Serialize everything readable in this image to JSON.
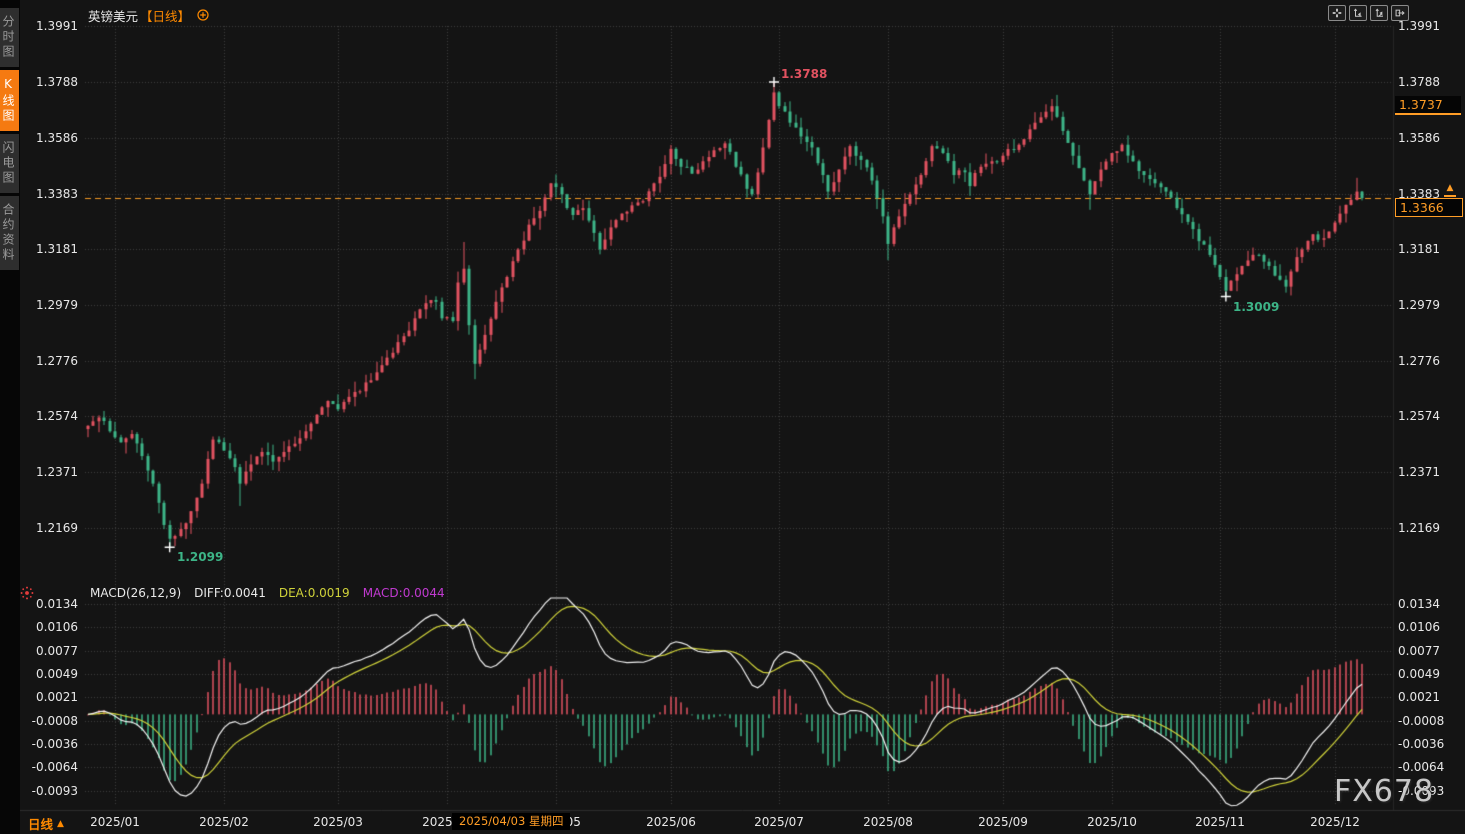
{
  "sidebar": {
    "items": [
      {
        "label": "分时图",
        "active": false
      },
      {
        "label": "K线图",
        "active": true
      },
      {
        "label": "闪电图",
        "active": false
      },
      {
        "label": "合约资料",
        "active": false
      }
    ]
  },
  "header": {
    "symbol": "英镑美元",
    "period_tag": "【日线】"
  },
  "toolbar": {
    "icons": [
      "move-icon",
      "fit-axis-left-icon",
      "fit-axis-right-icon",
      "shift-right-icon"
    ]
  },
  "price_tags": {
    "upper": "1.3737",
    "last": "1.3366"
  },
  "macd_header": {
    "params": "MACD(26,12,9)",
    "diff_label": "DIFF:0.0041",
    "dea_label": "DEA:0.0019",
    "macd_label": "MACD:0.0044"
  },
  "bottom_bar": {
    "period": "日线",
    "arrow": "▲",
    "date_tag": "2025/04/03 星期四",
    "watermark": "FX678"
  },
  "latest_marker_glyph": "▲",
  "chart_data": {
    "type": "candlestick",
    "title": "英镑美元 日线 (GBP/USD daily, year 2025)",
    "price_axis": {
      "ticks": [
        "1.3991",
        "1.3788",
        "1.3586",
        "1.3383",
        "1.3181",
        "1.2979",
        "1.2776",
        "1.2574",
        "1.2371",
        "1.2169"
      ],
      "top_value": 1.3991,
      "bottom_value": 1.2169
    },
    "macd_axis": {
      "ticks": [
        "0.0134",
        "0.0106",
        "0.0077",
        "0.0049",
        "0.0021",
        "-0.0008",
        "-0.0036",
        "-0.0064",
        "-0.0093"
      ],
      "top_value": 0.0134,
      "bottom_value": -0.0093
    },
    "x_axis": {
      "months": [
        "2025/01",
        "2025/02",
        "2025/03",
        "2025/04",
        "2025/05",
        "2025/06",
        "2025/07",
        "2025/08",
        "2025/09",
        "2025/10",
        "2025/11",
        "2025/12"
      ],
      "month_start_indices": [
        5,
        25,
        46,
        66,
        86,
        107,
        127,
        147,
        168,
        188,
        208,
        229
      ]
    },
    "last_price": 1.3366,
    "upper_tag_price": 1.3737,
    "annotations": [
      {
        "index": 126,
        "type": "high",
        "price": 1.3788,
        "label": "1.3788"
      },
      {
        "index": 15,
        "type": "low",
        "price": 1.2099,
        "label": "1.2099"
      },
      {
        "index": 209,
        "type": "low",
        "price": 1.3009,
        "label": "1.3009"
      }
    ],
    "macd": {
      "fast": 26,
      "slow": 12,
      "signal": 9,
      "diff": 0.0041,
      "dea": 0.0019,
      "macd": 0.0044
    },
    "candles": {
      "count": 235,
      "seed": 20251216,
      "anchors": [
        [
          0,
          1.254
        ],
        [
          2,
          1.257
        ],
        [
          4,
          1.252
        ],
        [
          6,
          1.248
        ],
        [
          8,
          1.251
        ],
        [
          10,
          1.243
        ],
        [
          12,
          1.233
        ],
        [
          14,
          1.218
        ],
        [
          15,
          1.213
        ],
        [
          17,
          1.2165
        ],
        [
          19,
          1.223
        ],
        [
          21,
          1.233
        ],
        [
          23,
          1.249
        ],
        [
          25,
          1.245
        ],
        [
          27,
          1.239
        ],
        [
          28,
          1.233
        ],
        [
          30,
          1.24
        ],
        [
          32,
          1.2445
        ],
        [
          34,
          1.241
        ],
        [
          36,
          1.2445
        ],
        [
          38,
          1.2475
        ],
        [
          40,
          1.252
        ],
        [
          42,
          1.258
        ],
        [
          44,
          1.263
        ],
        [
          46,
          1.26
        ],
        [
          48,
          1.2645
        ],
        [
          50,
          1.2665
        ],
        [
          52,
          1.2705
        ],
        [
          54,
          1.276
        ],
        [
          56,
          1.2805
        ],
        [
          58,
          1.2865
        ],
        [
          60,
          1.293
        ],
        [
          62,
          1.2985
        ],
        [
          64,
          1.299
        ],
        [
          65,
          1.293
        ],
        [
          67,
          1.292
        ],
        [
          68,
          1.306
        ],
        [
          69,
          1.311
        ],
        [
          70,
          1.2905
        ],
        [
          71,
          1.2765
        ],
        [
          73,
          1.287
        ],
        [
          75,
          1.299
        ],
        [
          77,
          1.308
        ],
        [
          79,
          1.318
        ],
        [
          81,
          1.327
        ],
        [
          83,
          1.332
        ],
        [
          85,
          1.342
        ],
        [
          87,
          1.338
        ],
        [
          89,
          1.3305
        ],
        [
          91,
          1.333
        ],
        [
          93,
          1.324
        ],
        [
          94,
          1.318
        ],
        [
          96,
          1.326
        ],
        [
          98,
          1.331
        ],
        [
          100,
          1.334
        ],
        [
          102,
          1.3355
        ],
        [
          104,
          1.342
        ],
        [
          106,
          1.349
        ],
        [
          107,
          1.3545
        ],
        [
          109,
          1.348
        ],
        [
          111,
          1.3455
        ],
        [
          113,
          1.35
        ],
        [
          115,
          1.354
        ],
        [
          117,
          1.3565
        ],
        [
          119,
          1.348
        ],
        [
          121,
          1.34
        ],
        [
          122,
          1.338
        ],
        [
          124,
          1.355
        ],
        [
          125,
          1.365
        ],
        [
          126,
          1.375
        ],
        [
          127,
          1.37
        ],
        [
          129,
          1.364
        ],
        [
          131,
          1.359
        ],
        [
          133,
          1.355
        ],
        [
          135,
          1.345
        ],
        [
          136,
          1.339
        ],
        [
          138,
          1.347
        ],
        [
          140,
          1.3555
        ],
        [
          142,
          1.3505
        ],
        [
          144,
          1.343
        ],
        [
          146,
          1.33
        ],
        [
          147,
          1.32
        ],
        [
          149,
          1.33
        ],
        [
          151,
          1.338
        ],
        [
          153,
          1.345
        ],
        [
          155,
          1.3555
        ],
        [
          157,
          1.353
        ],
        [
          159,
          1.345
        ],
        [
          161,
          1.346
        ],
        [
          162,
          1.341
        ],
        [
          164,
          1.348
        ],
        [
          166,
          1.35
        ],
        [
          168,
          1.352
        ],
        [
          171,
          1.356
        ],
        [
          174,
          1.364
        ],
        [
          176,
          1.368
        ],
        [
          177,
          1.37
        ],
        [
          179,
          1.361
        ],
        [
          181,
          1.352
        ],
        [
          183,
          1.343
        ],
        [
          184,
          1.338
        ],
        [
          186,
          1.347
        ],
        [
          188,
          1.353
        ],
        [
          190,
          1.356
        ],
        [
          192,
          1.35
        ],
        [
          194,
          1.345
        ],
        [
          196,
          1.342
        ],
        [
          198,
          1.339
        ],
        [
          200,
          1.333
        ],
        [
          202,
          1.328
        ],
        [
          204,
          1.321
        ],
        [
          206,
          1.316
        ],
        [
          208,
          1.308
        ],
        [
          209,
          1.303
        ],
        [
          211,
          1.309
        ],
        [
          213,
          1.314
        ],
        [
          215,
          1.316
        ],
        [
          217,
          1.312
        ],
        [
          219,
          1.307
        ],
        [
          220,
          1.3045
        ],
        [
          221,
          1.31
        ],
        [
          223,
          1.318
        ],
        [
          225,
          1.3235
        ],
        [
          226,
          1.3215
        ],
        [
          228,
          1.3245
        ],
        [
          230,
          1.331
        ],
        [
          232,
          1.336
        ],
        [
          233,
          1.339
        ],
        [
          234,
          1.3366
        ]
      ],
      "pinned_highs": [
        [
          69,
          1.3207
        ],
        [
          126,
          1.3788
        ],
        [
          177,
          1.3726
        ],
        [
          233,
          1.344
        ]
      ],
      "pinned_lows": [
        [
          15,
          1.2099
        ],
        [
          28,
          1.2249
        ],
        [
          71,
          1.2709
        ],
        [
          147,
          1.3141
        ],
        [
          184,
          1.3324
        ],
        [
          209,
          1.3009
        ]
      ]
    },
    "colors": {
      "up": "#e15260",
      "down": "#3db487",
      "accent": "#ff8a00",
      "tag_orange": "#ff9d26",
      "dea_line": "#cfd23a",
      "macd_line": "#c03ad0",
      "diff_line": "#f2f2f2",
      "grid": "#3d3d3d",
      "bg": "#141414",
      "axis_text": "#e8e8e8"
    }
  }
}
